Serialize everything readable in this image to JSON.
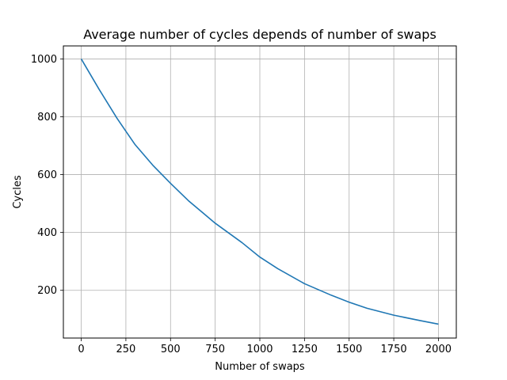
{
  "chart_data": {
    "type": "line",
    "title": "Average number of cycles depends of number of swaps",
    "xlabel": "Number of swaps",
    "ylabel": "Cycles",
    "xlim": [
      -100,
      2100
    ],
    "ylim": [
      35,
      1045
    ],
    "xticks": [
      0,
      250,
      500,
      750,
      1000,
      1250,
      1500,
      1750,
      2000
    ],
    "xtick_labels": [
      "0",
      "250",
      "500",
      "750",
      "1000",
      "1250",
      "1500",
      "1750",
      "2000"
    ],
    "yticks": [
      200,
      400,
      600,
      800,
      1000
    ],
    "ytick_labels": [
      "200",
      "400",
      "600",
      "800",
      "1000"
    ],
    "grid": true,
    "series": [
      {
        "color": "#1f77b4",
        "x": [
          0,
          100,
          200,
          250,
          300,
          400,
          500,
          600,
          750,
          900,
          1000,
          1100,
          1250,
          1400,
          1500,
          1600,
          1750,
          1900,
          2000
        ],
        "y": [
          1000,
          895,
          795,
          750,
          705,
          633,
          570,
          510,
          432,
          365,
          315,
          275,
          223,
          183,
          159,
          138,
          114,
          95,
          83
        ]
      }
    ]
  }
}
